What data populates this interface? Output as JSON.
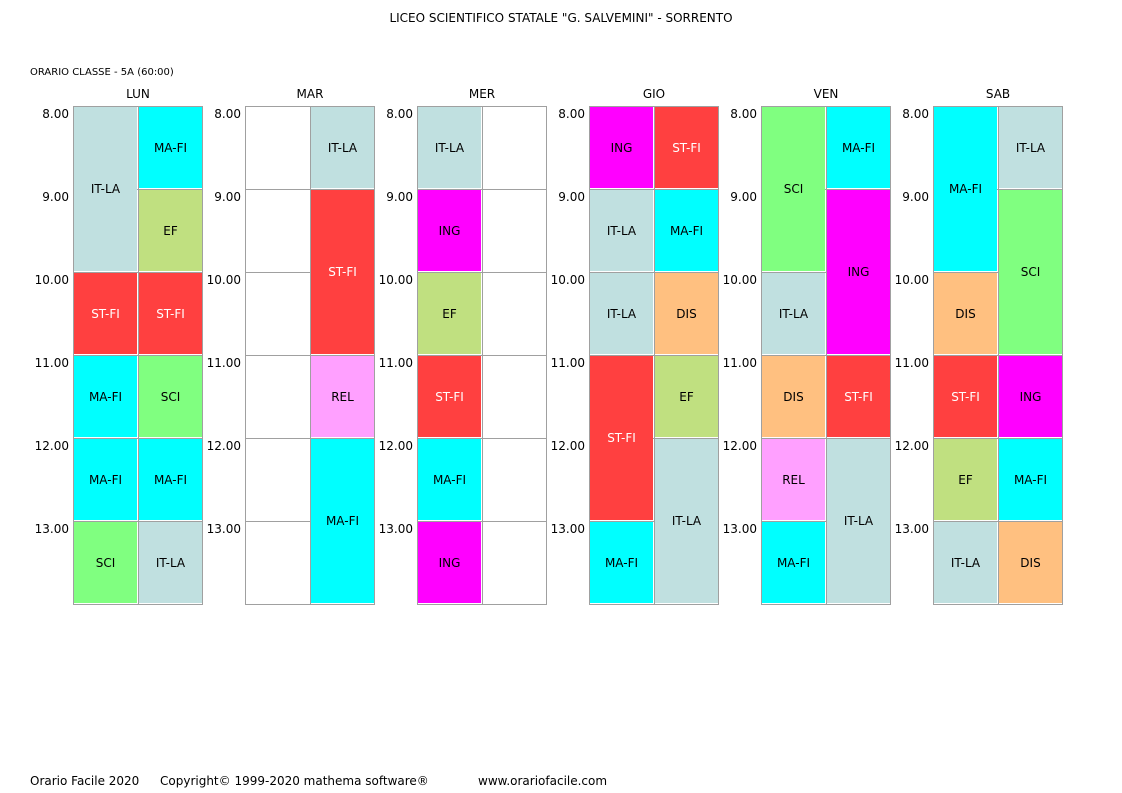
{
  "title": "LICEO SCIENTIFICO STATALE \"G. SALVEMINI\" - SORRENTO",
  "class_label": "ORARIO CLASSE  -  5A  (60:00)",
  "times": [
    "8.00",
    "9.00",
    "10.00",
    "11.00",
    "12.00",
    "13.00"
  ],
  "colors": {
    "IT-LA": "#c0e0e0",
    "MA-FI": "#00ffff",
    "EF": "#c0e080",
    "ST-FI": "#ff4040",
    "SCI": "#80ff80",
    "REL": "#ffa0ff",
    "ING": "#ff00ff",
    "DIS": "#ffc080"
  },
  "days": [
    {
      "name": "LUN",
      "left": [
        {
          "subject": "IT-LA",
          "start": 0,
          "span": 2
        },
        {
          "subject": "ST-FI",
          "start": 2,
          "span": 1
        },
        {
          "subject": "MA-FI",
          "start": 3,
          "span": 1
        },
        {
          "subject": "MA-FI",
          "start": 4,
          "span": 1
        },
        {
          "subject": "SCI",
          "start": 5,
          "span": 1
        }
      ],
      "right": [
        {
          "subject": "MA-FI",
          "start": 0,
          "span": 1
        },
        {
          "subject": "EF",
          "start": 1,
          "span": 1
        },
        {
          "subject": "ST-FI",
          "start": 2,
          "span": 1
        },
        {
          "subject": "SCI",
          "start": 3,
          "span": 1
        },
        {
          "subject": "MA-FI",
          "start": 4,
          "span": 1
        },
        {
          "subject": "IT-LA",
          "start": 5,
          "span": 1
        }
      ]
    },
    {
      "name": "MAR",
      "left": [],
      "right": [
        {
          "subject": "IT-LA",
          "start": 0,
          "span": 1
        },
        {
          "subject": "ST-FI",
          "start": 1,
          "span": 2
        },
        {
          "subject": "REL",
          "start": 3,
          "span": 1
        },
        {
          "subject": "MA-FI",
          "start": 4,
          "span": 2
        }
      ]
    },
    {
      "name": "MER",
      "left": [
        {
          "subject": "IT-LA",
          "start": 0,
          "span": 1
        },
        {
          "subject": "ING",
          "start": 1,
          "span": 1
        },
        {
          "subject": "EF",
          "start": 2,
          "span": 1
        },
        {
          "subject": "ST-FI",
          "start": 3,
          "span": 1
        },
        {
          "subject": "MA-FI",
          "start": 4,
          "span": 1
        },
        {
          "subject": "ING",
          "start": 5,
          "span": 1
        }
      ],
      "right": []
    },
    {
      "name": "GIO",
      "left": [
        {
          "subject": "ING",
          "start": 0,
          "span": 1
        },
        {
          "subject": "IT-LA",
          "start": 1,
          "span": 1
        },
        {
          "subject": "IT-LA",
          "start": 2,
          "span": 1
        },
        {
          "subject": "ST-FI",
          "start": 3,
          "span": 2
        },
        {
          "subject": "MA-FI",
          "start": 5,
          "span": 1
        }
      ],
      "right": [
        {
          "subject": "ST-FI",
          "start": 0,
          "span": 1
        },
        {
          "subject": "MA-FI",
          "start": 1,
          "span": 1
        },
        {
          "subject": "DIS",
          "start": 2,
          "span": 1
        },
        {
          "subject": "EF",
          "start": 3,
          "span": 1
        },
        {
          "subject": "IT-LA",
          "start": 4,
          "span": 2
        }
      ]
    },
    {
      "name": "VEN",
      "left": [
        {
          "subject": "SCI",
          "start": 0,
          "span": 2
        },
        {
          "subject": "IT-LA",
          "start": 2,
          "span": 1
        },
        {
          "subject": "DIS",
          "start": 3,
          "span": 1
        },
        {
          "subject": "REL",
          "start": 4,
          "span": 1
        },
        {
          "subject": "MA-FI",
          "start": 5,
          "span": 1
        }
      ],
      "right": [
        {
          "subject": "MA-FI",
          "start": 0,
          "span": 1
        },
        {
          "subject": "ING",
          "start": 1,
          "span": 2
        },
        {
          "subject": "ST-FI",
          "start": 3,
          "span": 1
        },
        {
          "subject": "IT-LA",
          "start": 4,
          "span": 2
        }
      ]
    },
    {
      "name": "SAB",
      "left": [
        {
          "subject": "MA-FI",
          "start": 0,
          "span": 2
        },
        {
          "subject": "DIS",
          "start": 2,
          "span": 1
        },
        {
          "subject": "ST-FI",
          "start": 3,
          "span": 1
        },
        {
          "subject": "EF",
          "start": 4,
          "span": 1
        },
        {
          "subject": "IT-LA",
          "start": 5,
          "span": 1
        }
      ],
      "right": [
        {
          "subject": "IT-LA",
          "start": 0,
          "span": 1
        },
        {
          "subject": "SCI",
          "start": 1,
          "span": 2
        },
        {
          "subject": "ING",
          "start": 3,
          "span": 1
        },
        {
          "subject": "MA-FI",
          "start": 4,
          "span": 1
        },
        {
          "subject": "DIS",
          "start": 5,
          "span": 1
        }
      ]
    }
  ],
  "footer": {
    "product": "Orario Facile 2020",
    "copyright": "Copyright© 1999-2020 mathema software®",
    "website": "www.orariofacile.com"
  }
}
